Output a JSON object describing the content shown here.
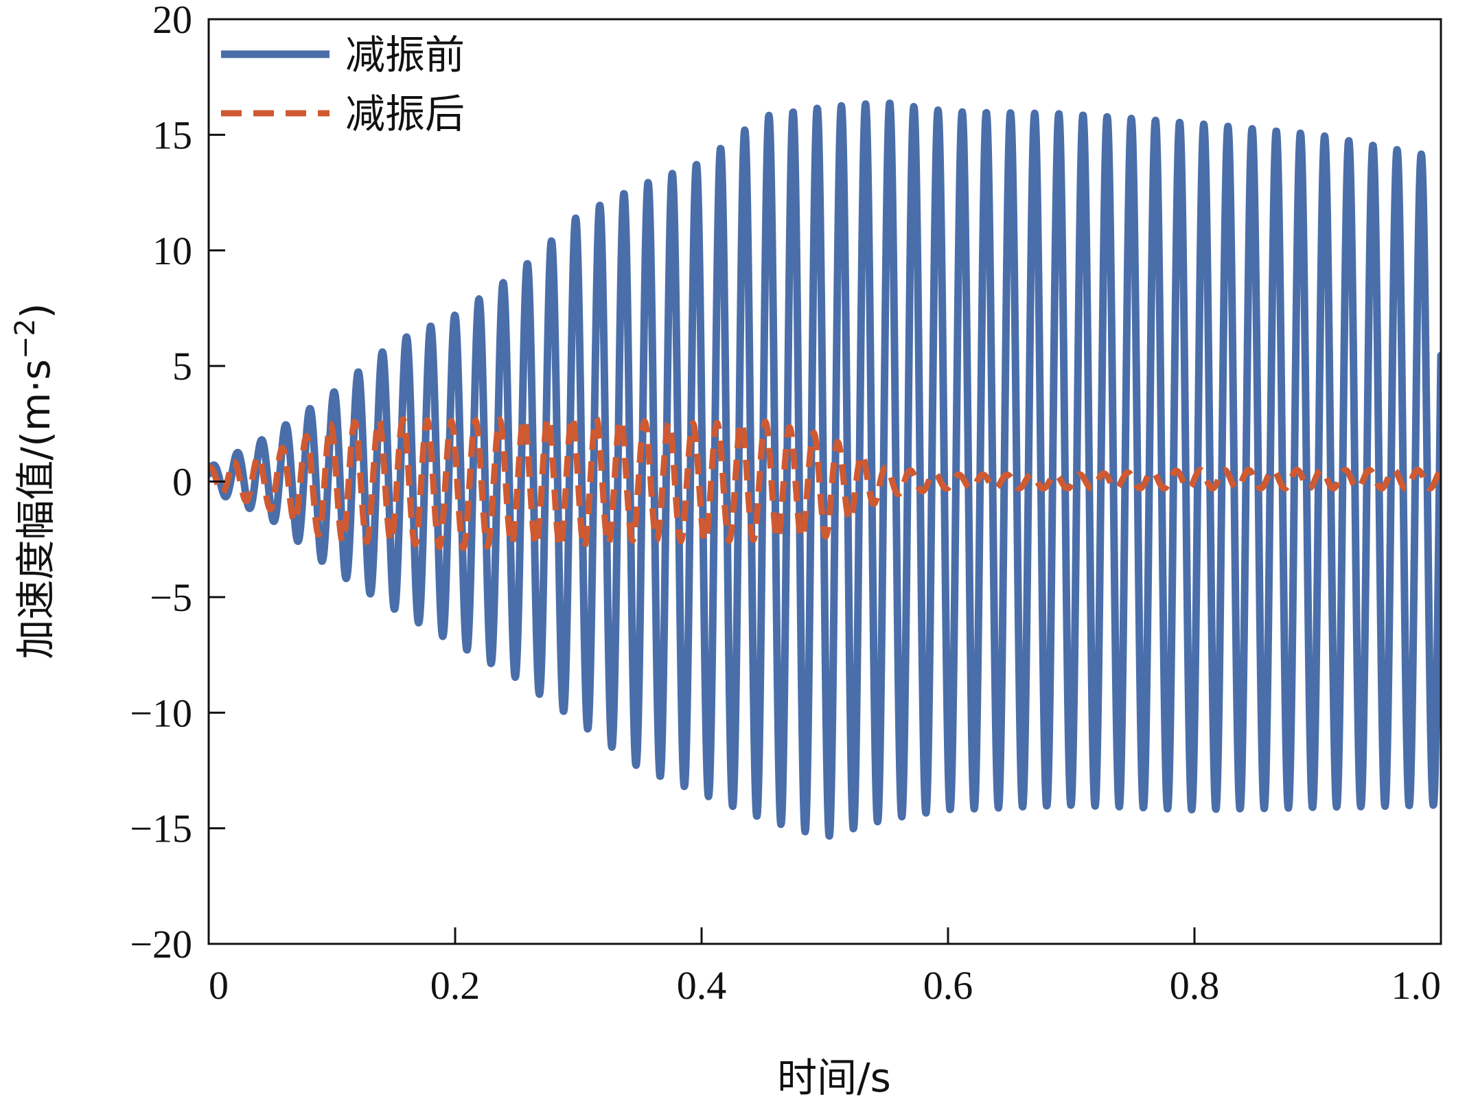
{
  "chart_data": {
    "type": "line",
    "xlabel": "时间/s",
    "ylabel": "加速度幅值/(m·s",
    "ylabel_sup": "−2",
    "ylabel_close": ")",
    "xlim": [
      0,
      1.0
    ],
    "ylim": [
      -20,
      20
    ],
    "x_ticks": [
      0,
      0.2,
      0.4,
      0.6,
      0.8,
      1.0
    ],
    "x_tick_labels": [
      "0",
      "0.2",
      "0.4",
      "0.6",
      "0.8",
      "1.0"
    ],
    "y_ticks": [
      -20,
      -15,
      -10,
      -5,
      0,
      5,
      10,
      15,
      20
    ],
    "y_tick_labels": [
      "−20",
      "−15",
      "−10",
      "−5",
      "0",
      "5",
      "10",
      "15",
      "20"
    ],
    "grid": false,
    "legend": "top-left",
    "series": [
      {
        "name": "减振前",
        "color": "#4a6ea9",
        "style": "solid",
        "frequency_hz": 51,
        "envelope": {
          "t": [
            0,
            0.05,
            0.1,
            0.15,
            0.2,
            0.25,
            0.3,
            0.35,
            0.4,
            0.45,
            0.5,
            0.55,
            0.6,
            0.7,
            0.8,
            0.9,
            1.0
          ],
          "max": [
            0.6,
            2.0,
            3.8,
            6.0,
            7.2,
            9.0,
            11.5,
            12.8,
            13.8,
            15.8,
            16.2,
            16.4,
            16.0,
            15.9,
            15.5,
            15.0,
            14.0
          ],
          "min": [
            -0.3,
            -1.6,
            -3.8,
            -5.5,
            -7.0,
            -8.5,
            -10.4,
            -12.4,
            -13.5,
            -14.6,
            -15.4,
            -14.6,
            -14.2,
            -14.0,
            -14.2,
            -14.1,
            -14.0
          ]
        }
      },
      {
        "name": "减振后",
        "color": "#cf5a32",
        "style": "dashed",
        "frequency_hz": 51,
        "envelope": {
          "t": [
            0,
            0.05,
            0.1,
            0.15,
            0.2,
            0.25,
            0.3,
            0.35,
            0.4,
            0.45,
            0.5,
            0.55,
            0.6,
            0.7,
            0.8,
            0.9,
            1.0
          ],
          "max": [
            0.6,
            1.2,
            2.5,
            2.7,
            2.6,
            2.7,
            2.8,
            2.6,
            2.5,
            2.6,
            2.0,
            0.6,
            0.3,
            0.3,
            0.5,
            0.5,
            0.5
          ],
          "min": [
            -0.3,
            -1.2,
            -2.6,
            -2.6,
            -2.9,
            -2.7,
            -2.9,
            -2.5,
            -2.6,
            -2.5,
            -2.4,
            -0.6,
            -0.3,
            -0.3,
            -0.3,
            -0.3,
            -0.3
          ]
        }
      }
    ]
  }
}
